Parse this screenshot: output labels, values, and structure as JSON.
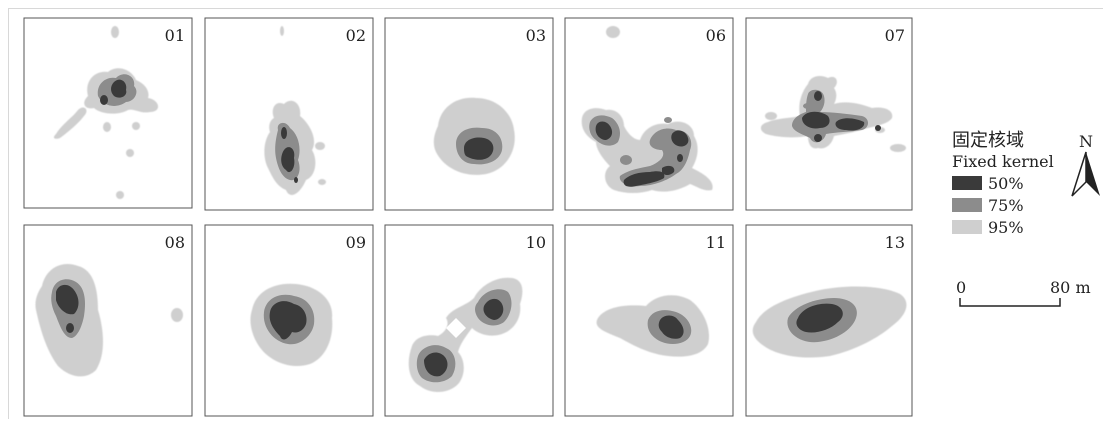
{
  "panels": [
    {
      "id": "01"
    },
    {
      "id": "02"
    },
    {
      "id": "03"
    },
    {
      "id": "06"
    },
    {
      "id": "07"
    },
    {
      "id": "08"
    },
    {
      "id": "09"
    },
    {
      "id": "10"
    },
    {
      "id": "11"
    },
    {
      "id": "13"
    }
  ],
  "legend": {
    "title_cn": "固定核域",
    "title_en": "Fixed kernel",
    "items": [
      {
        "label": "50%",
        "color": "#3a3a3a"
      },
      {
        "label": "75%",
        "color": "#8c8c8c"
      },
      {
        "label": "95%",
        "color": "#cfcfcf"
      }
    ]
  },
  "north_label": "N",
  "scale": {
    "start": "0",
    "end": "80 m"
  },
  "colors": {
    "k95": "#cfcfcf",
    "k75": "#8c8c8c",
    "k50": "#3a3a3a",
    "border": "#555555"
  }
}
